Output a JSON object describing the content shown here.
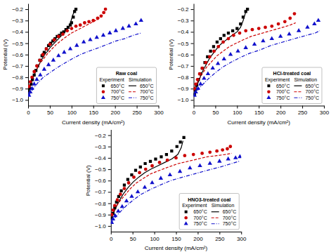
{
  "chart_data": [
    {
      "type": "line",
      "title": "Raw coal",
      "xlabel": "Current density (mA/cm²)",
      "ylabel": "Potential (V)",
      "annotations": [
        "Experiment",
        "Simulation"
      ],
      "xlim": [
        0,
        300
      ],
      "ylim": [
        -1.05,
        -0.15
      ],
      "xticks": [
        0,
        50,
        100,
        150,
        200,
        250,
        300
      ],
      "yticks": [
        {
          "value": -1.0,
          "label": "−1.0"
        },
        {
          "value": -0.9,
          "label": "−0.9"
        },
        {
          "value": -0.8,
          "label": "−0.8"
        },
        {
          "value": -0.7,
          "label": "−0.7"
        },
        {
          "value": -0.6,
          "label": "−0.6"
        },
        {
          "value": -0.5,
          "label": "−0.5"
        },
        {
          "value": -0.4,
          "label": "−0.4"
        },
        {
          "value": -0.3,
          "label": "−0.3"
        },
        {
          "value": -0.2,
          "label": "−0.2"
        }
      ],
      "grid": false,
      "legend": "lower right",
      "series": [
        {
          "name": "650°C",
          "type": "scatter",
          "marker": "square",
          "color": "#000000",
          "x": [
            2,
            4,
            7,
            10,
            14,
            18,
            22,
            27,
            32,
            37,
            42,
            47,
            52,
            57,
            62,
            67,
            72,
            77,
            82,
            87,
            92,
            97,
            100,
            104,
            107,
            110
          ],
          "values": [
            -0.93,
            -0.9,
            -0.86,
            -0.82,
            -0.78,
            -0.74,
            -0.7,
            -0.65,
            -0.61,
            -0.58,
            -0.55,
            -0.52,
            -0.5,
            -0.48,
            -0.46,
            -0.44,
            -0.43,
            -0.41,
            -0.4,
            -0.38,
            -0.36,
            -0.34,
            -0.32,
            -0.27,
            -0.22,
            -0.2
          ]
        },
        {
          "name": "650°C",
          "type": "line",
          "line_style": "solid",
          "color": "#000000",
          "x": [
            0,
            3,
            6,
            10,
            15,
            20,
            25,
            30,
            35,
            40,
            45,
            50,
            55,
            60,
            65,
            70,
            75,
            80,
            85,
            90,
            95,
            99,
            102,
            105,
            107,
            109
          ],
          "values": [
            -0.95,
            -0.91,
            -0.87,
            -0.82,
            -0.77,
            -0.73,
            -0.69,
            -0.65,
            -0.62,
            -0.59,
            -0.57,
            -0.54,
            -0.52,
            -0.5,
            -0.48,
            -0.46,
            -0.44,
            -0.42,
            -0.4,
            -0.38,
            -0.35,
            -0.3,
            -0.26,
            -0.23,
            -0.21,
            -0.2
          ]
        },
        {
          "name": "700°C",
          "type": "scatter",
          "marker": "circle",
          "color": "#cc0000",
          "x": [
            2,
            5,
            9,
            14,
            20,
            27,
            34,
            42,
            50,
            60,
            70,
            80,
            90,
            100,
            110,
            120,
            130,
            140,
            150,
            160,
            168,
            174,
            178
          ],
          "values": [
            -0.88,
            -0.84,
            -0.8,
            -0.75,
            -0.7,
            -0.65,
            -0.6,
            -0.55,
            -0.51,
            -0.47,
            -0.44,
            -0.42,
            -0.39,
            -0.37,
            -0.35,
            -0.34,
            -0.32,
            -0.31,
            -0.3,
            -0.28,
            -0.26,
            -0.23,
            -0.2
          ]
        },
        {
          "name": "700°C",
          "type": "line",
          "line_style": "dashed",
          "color": "#cc0000",
          "x": [
            0,
            5,
            10,
            18,
            25,
            35,
            45,
            55,
            65,
            75,
            85,
            100,
            115,
            130,
            145,
            160,
            172,
            177
          ],
          "values": [
            -0.9,
            -0.85,
            -0.8,
            -0.74,
            -0.69,
            -0.64,
            -0.59,
            -0.55,
            -0.51,
            -0.48,
            -0.45,
            -0.41,
            -0.38,
            -0.35,
            -0.32,
            -0.29,
            -0.25,
            -0.22
          ]
        },
        {
          "name": "750°C",
          "type": "scatter",
          "marker": "triangle",
          "color": "#1111cc",
          "x": [
            2,
            5,
            9,
            14,
            20,
            28,
            37,
            47,
            58,
            70,
            83,
            97,
            112,
            128,
            143,
            158,
            173,
            188,
            202,
            218,
            232,
            248,
            260
          ],
          "values": [
            -0.96,
            -0.93,
            -0.9,
            -0.86,
            -0.82,
            -0.78,
            -0.73,
            -0.69,
            -0.65,
            -0.61,
            -0.58,
            -0.55,
            -0.52,
            -0.49,
            -0.47,
            -0.45,
            -0.43,
            -0.41,
            -0.39,
            -0.37,
            -0.35,
            -0.33,
            -0.3
          ]
        },
        {
          "name": "750°C",
          "type": "line",
          "line_style": "dashdot",
          "color": "#1111cc",
          "x": [
            0,
            5,
            12,
            22,
            35,
            50,
            65,
            82,
            100,
            120,
            140,
            162,
            182,
            202,
            222,
            242,
            260
          ],
          "values": [
            -0.97,
            -0.94,
            -0.9,
            -0.85,
            -0.8,
            -0.76,
            -0.72,
            -0.68,
            -0.64,
            -0.6,
            -0.57,
            -0.54,
            -0.51,
            -0.48,
            -0.46,
            -0.43,
            -0.41
          ]
        }
      ]
    },
    {
      "type": "line",
      "title": "HCl-treated coal",
      "xlabel": "Current density (mA/cm²)",
      "ylabel": "Potential (V)",
      "annotations": [
        "Experiment",
        "Simulation"
      ],
      "xlim": [
        0,
        300
      ],
      "ylim": [
        -1.05,
        -0.15
      ],
      "xticks": [
        0,
        50,
        100,
        150,
        200,
        250,
        300
      ],
      "yticks": [
        {
          "value": -1.0,
          "label": "−1.0"
        },
        {
          "value": -0.9,
          "label": "−0.9"
        },
        {
          "value": -0.8,
          "label": "−0.8"
        },
        {
          "value": -0.7,
          "label": "−0.7"
        },
        {
          "value": -0.6,
          "label": "−0.6"
        },
        {
          "value": -0.5,
          "label": "−0.5"
        },
        {
          "value": -0.4,
          "label": "−0.4"
        },
        {
          "value": -0.3,
          "label": "−0.3"
        },
        {
          "value": -0.2,
          "label": "−0.2"
        }
      ],
      "grid": false,
      "legend": "lower right",
      "series": [
        {
          "name": "650°C",
          "type": "scatter",
          "marker": "square",
          "color": "#000000",
          "x": [
            2,
            4,
            7,
            11,
            15,
            20,
            26,
            32,
            39,
            46,
            54,
            62,
            70,
            80,
            90,
            100,
            108,
            114,
            120,
            124
          ],
          "values": [
            -0.95,
            -0.91,
            -0.87,
            -0.82,
            -0.77,
            -0.72,
            -0.67,
            -0.62,
            -0.57,
            -0.53,
            -0.49,
            -0.46,
            -0.43,
            -0.41,
            -0.39,
            -0.37,
            -0.33,
            -0.27,
            -0.22,
            -0.2
          ]
        },
        {
          "name": "650°C",
          "type": "line",
          "line_style": "solid",
          "color": "#000000",
          "x": [
            0,
            3,
            7,
            12,
            17,
            23,
            30,
            37,
            45,
            53,
            62,
            72,
            82,
            92,
            100,
            108,
            114,
            118,
            121
          ],
          "values": [
            -0.96,
            -0.92,
            -0.88,
            -0.83,
            -0.78,
            -0.73,
            -0.68,
            -0.63,
            -0.59,
            -0.55,
            -0.51,
            -0.48,
            -0.45,
            -0.42,
            -0.4,
            -0.36,
            -0.3,
            -0.25,
            -0.21
          ]
        },
        {
          "name": "700°C",
          "type": "scatter",
          "marker": "circle",
          "color": "#cc0000",
          "x": [
            2,
            5,
            9,
            14,
            20,
            28,
            37,
            47,
            57,
            68,
            80,
            92,
            106,
            120,
            135,
            150,
            165,
            180,
            195,
            210,
            222,
            232
          ],
          "values": [
            -0.9,
            -0.86,
            -0.82,
            -0.77,
            -0.72,
            -0.67,
            -0.62,
            -0.57,
            -0.53,
            -0.49,
            -0.46,
            -0.43,
            -0.41,
            -0.39,
            -0.38,
            -0.37,
            -0.36,
            -0.35,
            -0.33,
            -0.31,
            -0.28,
            -0.24
          ]
        },
        {
          "name": "700°C",
          "type": "line",
          "line_style": "dashed",
          "color": "#cc0000",
          "x": [
            0,
            5,
            12,
            20,
            30,
            42,
            54,
            68,
            82,
            98,
            114,
            132,
            150,
            168,
            187,
            205,
            222,
            235
          ],
          "values": [
            -0.92,
            -0.87,
            -0.82,
            -0.77,
            -0.71,
            -0.66,
            -0.61,
            -0.57,
            -0.53,
            -0.5,
            -0.47,
            -0.44,
            -0.42,
            -0.4,
            -0.38,
            -0.36,
            -0.34,
            -0.32
          ]
        },
        {
          "name": "750°C",
          "type": "scatter",
          "marker": "triangle",
          "color": "#1111cc",
          "x": [
            2,
            5,
            10,
            16,
            24,
            33,
            44,
            56,
            70,
            85,
            102,
            120,
            140,
            160,
            180,
            200,
            220,
            242,
            262,
            278,
            287
          ],
          "values": [
            -0.96,
            -0.93,
            -0.9,
            -0.86,
            -0.81,
            -0.77,
            -0.72,
            -0.68,
            -0.64,
            -0.6,
            -0.57,
            -0.54,
            -0.51,
            -0.48,
            -0.46,
            -0.44,
            -0.42,
            -0.39,
            -0.36,
            -0.33,
            -0.3
          ]
        },
        {
          "name": "750°C",
          "type": "line",
          "line_style": "dashdot",
          "color": "#1111cc",
          "x": [
            0,
            5,
            12,
            22,
            35,
            50,
            67,
            85,
            105,
            128,
            152,
            178,
            205,
            232,
            260,
            280,
            290
          ],
          "values": [
            -0.97,
            -0.94,
            -0.9,
            -0.86,
            -0.81,
            -0.76,
            -0.71,
            -0.67,
            -0.63,
            -0.59,
            -0.56,
            -0.52,
            -0.49,
            -0.46,
            -0.43,
            -0.41,
            -0.39
          ]
        }
      ]
    },
    {
      "type": "line",
      "title": "HNO3-treated coal",
      "xlabel": "Current density (mA/cm²)",
      "ylabel": "Potential (V)",
      "annotations": [
        "Experiment",
        "Simulation"
      ],
      "xlim": [
        0,
        300
      ],
      "ylim": [
        -1.05,
        -0.15
      ],
      "xticks": [
        0,
        50,
        100,
        150,
        200,
        250,
        300
      ],
      "yticks": [
        {
          "value": -1.0,
          "label": "−1.0"
        },
        {
          "value": -0.9,
          "label": "−0.9"
        },
        {
          "value": -0.8,
          "label": "−0.8"
        },
        {
          "value": -0.7,
          "label": "−0.7"
        },
        {
          "value": -0.6,
          "label": "−0.6"
        },
        {
          "value": -0.5,
          "label": "−0.5"
        },
        {
          "value": -0.4,
          "label": "−0.4"
        },
        {
          "value": -0.3,
          "label": "−0.3"
        },
        {
          "value": -0.2,
          "label": "−0.2"
        }
      ],
      "grid": false,
      "legend": "lower right",
      "series": [
        {
          "name": "650°C",
          "type": "scatter",
          "marker": "square",
          "color": "#000000",
          "x": [
            2,
            5,
            9,
            13,
            18,
            24,
            31,
            39,
            48,
            57,
            68,
            79,
            91,
            103,
            116,
            128,
            140,
            152,
            160,
            168
          ],
          "values": [
            -0.93,
            -0.89,
            -0.84,
            -0.79,
            -0.74,
            -0.69,
            -0.64,
            -0.59,
            -0.55,
            -0.51,
            -0.48,
            -0.45,
            -0.43,
            -0.41,
            -0.39,
            -0.37,
            -0.34,
            -0.3,
            -0.26,
            -0.22
          ]
        },
        {
          "name": "650°C",
          "type": "line",
          "line_style": "solid",
          "color": "#000000",
          "x": [
            0,
            4,
            9,
            15,
            22,
            30,
            40,
            52,
            64,
            78,
            92,
            108,
            124,
            140,
            154,
            162,
            166
          ],
          "values": [
            -0.95,
            -0.91,
            -0.86,
            -0.81,
            -0.76,
            -0.71,
            -0.66,
            -0.61,
            -0.57,
            -0.53,
            -0.5,
            -0.47,
            -0.44,
            -0.41,
            -0.37,
            -0.31,
            -0.25
          ]
        },
        {
          "name": "700°C",
          "type": "scatter",
          "marker": "circle",
          "color": "#cc0000",
          "x": [
            2,
            5,
            9,
            15,
            22,
            31,
            41,
            53,
            66,
            80,
            95,
            112,
            130,
            150,
            170,
            190,
            210,
            228,
            244,
            257,
            268,
            275
          ],
          "values": [
            -0.9,
            -0.86,
            -0.82,
            -0.77,
            -0.72,
            -0.67,
            -0.62,
            -0.57,
            -0.53,
            -0.5,
            -0.47,
            -0.44,
            -0.42,
            -0.4,
            -0.38,
            -0.37,
            -0.36,
            -0.35,
            -0.34,
            -0.33,
            -0.32,
            -0.3
          ]
        },
        {
          "name": "700°C",
          "type": "line",
          "line_style": "dashed",
          "color": "#cc0000",
          "x": [
            0,
            5,
            12,
            21,
            32,
            45,
            59,
            75,
            92,
            112,
            133,
            155,
            178,
            200,
            222,
            244,
            263,
            278
          ],
          "values": [
            -0.92,
            -0.88,
            -0.83,
            -0.78,
            -0.73,
            -0.67,
            -0.62,
            -0.58,
            -0.54,
            -0.51,
            -0.48,
            -0.45,
            -0.43,
            -0.41,
            -0.39,
            -0.38,
            -0.37,
            -0.36
          ]
        },
        {
          "name": "750°C",
          "type": "scatter",
          "marker": "triangle",
          "color": "#1111cc",
          "x": [
            2,
            5,
            10,
            17,
            26,
            36,
            48,
            62,
            78,
            95,
            115,
            136,
            159,
            182,
            205,
            228,
            250,
            270,
            287,
            297
          ],
          "values": [
            -0.97,
            -0.94,
            -0.91,
            -0.87,
            -0.83,
            -0.78,
            -0.74,
            -0.7,
            -0.66,
            -0.62,
            -0.58,
            -0.55,
            -0.52,
            -0.49,
            -0.47,
            -0.45,
            -0.43,
            -0.41,
            -0.4,
            -0.39
          ]
        },
        {
          "name": "750°C",
          "type": "line",
          "line_style": "dashdot",
          "color": "#1111cc",
          "x": [
            0,
            5,
            13,
            23,
            36,
            52,
            70,
            90,
            113,
            138,
            165,
            193,
            222,
            252,
            278,
            295
          ],
          "values": [
            -0.98,
            -0.95,
            -0.91,
            -0.87,
            -0.82,
            -0.77,
            -0.72,
            -0.68,
            -0.64,
            -0.6,
            -0.57,
            -0.54,
            -0.51,
            -0.48,
            -0.45,
            -0.43
          ]
        }
      ]
    }
  ]
}
